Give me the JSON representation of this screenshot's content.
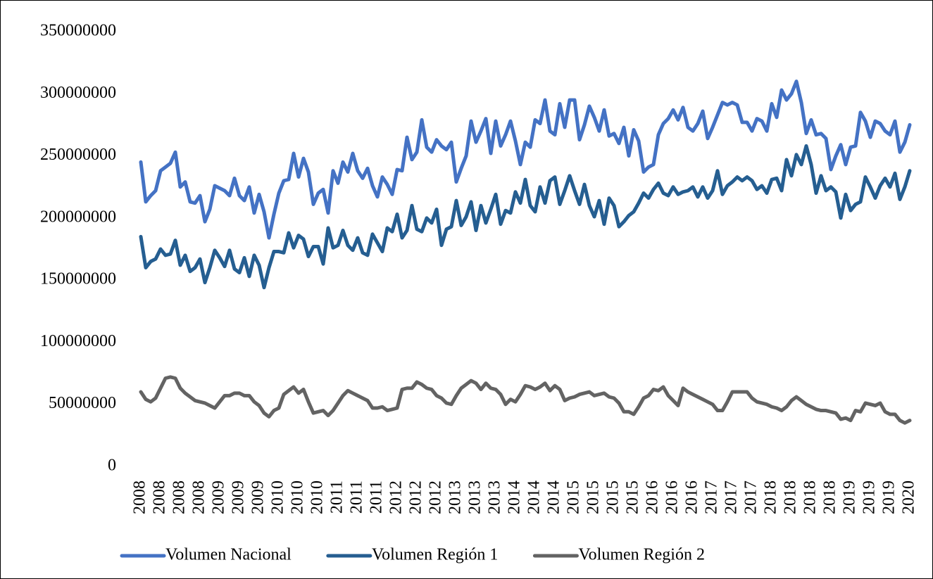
{
  "chart_data": {
    "type": "line",
    "categories": [
      "2008",
      null,
      null,
      null,
      "2008",
      null,
      null,
      null,
      "2008",
      null,
      null,
      null,
      "2008",
      null,
      null,
      null,
      "2009",
      null,
      null,
      null,
      "2009",
      null,
      null,
      null,
      "2009",
      null,
      null,
      null,
      "2010",
      null,
      null,
      null,
      "2010",
      null,
      null,
      null,
      "2010",
      null,
      null,
      null,
      "2011",
      null,
      null,
      null,
      "2011",
      null,
      null,
      null,
      "2011",
      null,
      null,
      null,
      "2012",
      null,
      null,
      null,
      "2012",
      null,
      null,
      null,
      "2012",
      null,
      null,
      null,
      "2013",
      null,
      null,
      null,
      "2013",
      null,
      null,
      null,
      "2013",
      null,
      null,
      null,
      "2014",
      null,
      null,
      null,
      "2014",
      null,
      null,
      null,
      "2014",
      null,
      null,
      null,
      "2015",
      null,
      null,
      null,
      "2015",
      null,
      null,
      null,
      "2015",
      null,
      null,
      null,
      "2015",
      null,
      null,
      null,
      "2016",
      null,
      null,
      null,
      "2016",
      null,
      null,
      null,
      "2016",
      null,
      null,
      null,
      "2017",
      null,
      null,
      null,
      "2017",
      null,
      null,
      null,
      "2017",
      null,
      null,
      null,
      "2018",
      null,
      null,
      null,
      "2018",
      null,
      null,
      null,
      "2018",
      null,
      null,
      null,
      "2018",
      null,
      null,
      null,
      "2019",
      null,
      null,
      null,
      "2019",
      null,
      null,
      null,
      "2019",
      null,
      null,
      null,
      "2020"
    ],
    "series": [
      {
        "name": "Volumen Nacional",
        "color": "#4472c4",
        "values": [
          245000000,
          213000000,
          218000000,
          222000000,
          238000000,
          241000000,
          244000000,
          253000000,
          225000000,
          229000000,
          213000000,
          212000000,
          218000000,
          197000000,
          207000000,
          226000000,
          224000000,
          222000000,
          218000000,
          232000000,
          218000000,
          214000000,
          225000000,
          204000000,
          219000000,
          205000000,
          184000000,
          203000000,
          220000000,
          230000000,
          231000000,
          252000000,
          233000000,
          248000000,
          237000000,
          211000000,
          220000000,
          223000000,
          204000000,
          238000000,
          228000000,
          245000000,
          237000000,
          252000000,
          238000000,
          232000000,
          240000000,
          226000000,
          217000000,
          233000000,
          227000000,
          219000000,
          239000000,
          238000000,
          265000000,
          247000000,
          253000000,
          279000000,
          257000000,
          253000000,
          263000000,
          258000000,
          255000000,
          261000000,
          229000000,
          240000000,
          250000000,
          278000000,
          261000000,
          270000000,
          280000000,
          252000000,
          278000000,
          258000000,
          267000000,
          278000000,
          262000000,
          243000000,
          261000000,
          257000000,
          279000000,
          276000000,
          295000000,
          270000000,
          267000000,
          292000000,
          273000000,
          295000000,
          295000000,
          263000000,
          275000000,
          290000000,
          281000000,
          270000000,
          287000000,
          266000000,
          268000000,
          260000000,
          273000000,
          250000000,
          271000000,
          262000000,
          237000000,
          241000000,
          243000000,
          267000000,
          276000000,
          280000000,
          287000000,
          279000000,
          289000000,
          273000000,
          270000000,
          276000000,
          286000000,
          264000000,
          273000000,
          283000000,
          293000000,
          291000000,
          293000000,
          291000000,
          277000000,
          277000000,
          270000000,
          280000000,
          278000000,
          270000000,
          292000000,
          281000000,
          303000000,
          295000000,
          300000000,
          310000000,
          293000000,
          268000000,
          279000000,
          267000000,
          268000000,
          264000000,
          239000000,
          250000000,
          259000000,
          243000000,
          257000000,
          258000000,
          285000000,
          278000000,
          265000000,
          278000000,
          276000000,
          270000000,
          267000000,
          278000000,
          253000000,
          261000000,
          275000000
        ]
      },
      {
        "name": "Volumen Región 1",
        "color": "#255e91",
        "values": [
          185000000,
          160000000,
          165000000,
          167000000,
          175000000,
          170000000,
          171000000,
          182000000,
          162000000,
          170000000,
          157000000,
          160000000,
          167000000,
          148000000,
          160000000,
          174000000,
          168000000,
          161000000,
          174000000,
          159000000,
          156000000,
          168000000,
          153000000,
          170000000,
          162000000,
          144000000,
          160000000,
          173000000,
          173000000,
          172000000,
          188000000,
          176000000,
          186000000,
          183000000,
          169000000,
          177000000,
          177000000,
          163000000,
          192000000,
          176000000,
          178000000,
          190000000,
          178000000,
          174000000,
          184000000,
          172000000,
          170000000,
          187000000,
          180000000,
          173000000,
          192000000,
          189000000,
          203000000,
          184000000,
          190000000,
          210000000,
          191000000,
          189000000,
          200000000,
          196000000,
          207000000,
          178000000,
          191000000,
          193000000,
          214000000,
          194000000,
          201000000,
          213000000,
          190000000,
          210000000,
          196000000,
          207000000,
          219000000,
          195000000,
          206000000,
          204000000,
          221000000,
          212000000,
          231000000,
          210000000,
          205000000,
          225000000,
          212000000,
          230000000,
          233000000,
          211000000,
          222000000,
          234000000,
          222000000,
          211000000,
          227000000,
          210000000,
          201000000,
          214000000,
          195000000,
          216000000,
          210000000,
          193000000,
          197000000,
          202000000,
          205000000,
          212000000,
          220000000,
          216000000,
          223000000,
          228000000,
          220000000,
          218000000,
          225000000,
          219000000,
          221000000,
          222000000,
          225000000,
          217000000,
          225000000,
          216000000,
          222000000,
          238000000,
          219000000,
          226000000,
          229000000,
          233000000,
          230000000,
          233000000,
          230000000,
          223000000,
          226000000,
          220000000,
          231000000,
          232000000,
          222000000,
          247000000,
          234000000,
          251000000,
          243000000,
          258000000,
          243000000,
          220000000,
          234000000,
          222000000,
          225000000,
          221000000,
          200000000,
          219000000,
          206000000,
          211000000,
          213000000,
          233000000,
          225000000,
          216000000,
          226000000,
          232000000,
          225000000,
          236000000,
          215000000,
          225000000,
          238000000
        ]
      },
      {
        "name": "Volumen Región 2",
        "color": "#636363",
        "values": [
          60000000,
          54000000,
          52000000,
          55000000,
          63000000,
          71000000,
          72000000,
          71000000,
          63000000,
          59000000,
          56000000,
          53000000,
          52000000,
          51000000,
          49000000,
          47000000,
          52000000,
          57000000,
          57000000,
          59000000,
          59000000,
          57000000,
          57000000,
          52000000,
          49000000,
          43000000,
          40000000,
          45000000,
          47000000,
          58000000,
          61000000,
          64000000,
          59000000,
          62000000,
          52000000,
          43000000,
          44000000,
          45000000,
          41000000,
          45000000,
          51000000,
          57000000,
          61000000,
          59000000,
          57000000,
          55000000,
          53000000,
          47000000,
          47000000,
          48000000,
          45000000,
          46000000,
          47000000,
          62000000,
          63000000,
          63000000,
          68000000,
          66000000,
          63000000,
          62000000,
          57000000,
          55000000,
          51000000,
          50000000,
          57000000,
          63000000,
          66000000,
          69000000,
          67000000,
          62000000,
          67000000,
          63000000,
          62000000,
          58000000,
          50000000,
          54000000,
          52000000,
          58000000,
          65000000,
          64000000,
          62000000,
          64000000,
          67000000,
          61000000,
          65000000,
          62000000,
          53000000,
          55000000,
          56000000,
          58000000,
          59000000,
          60000000,
          57000000,
          58000000,
          59000000,
          56000000,
          55000000,
          51000000,
          44000000,
          44000000,
          42000000,
          48000000,
          55000000,
          57000000,
          62000000,
          61000000,
          64000000,
          57000000,
          53000000,
          49000000,
          63000000,
          60000000,
          58000000,
          56000000,
          54000000,
          52000000,
          50000000,
          45000000,
          45000000,
          52000000,
          60000000,
          60000000,
          60000000,
          60000000,
          55000000,
          52000000,
          51000000,
          50000000,
          48000000,
          47000000,
          45000000,
          48000000,
          53000000,
          56000000,
          53000000,
          50000000,
          48000000,
          46000000,
          45000000,
          45000000,
          44000000,
          43000000,
          38000000,
          39000000,
          37000000,
          45000000,
          44000000,
          51000000,
          50000000,
          49000000,
          51000000,
          44000000,
          42000000,
          42000000,
          37000000,
          35000000,
          37000000
        ]
      }
    ],
    "ylim": [
      0,
      350000000
    ],
    "yticks": [
      0,
      50000000,
      100000000,
      150000000,
      200000000,
      250000000,
      300000000,
      350000000
    ],
    "grid": false,
    "legend": "bottom"
  }
}
